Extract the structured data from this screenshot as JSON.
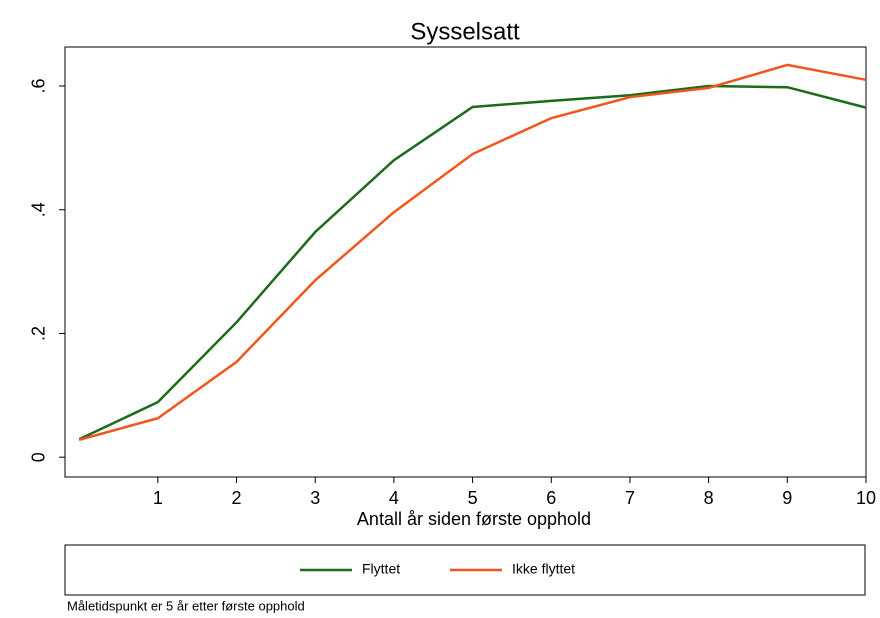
{
  "chart_data": {
    "type": "line",
    "title": "Sysselsatt",
    "x_label": "Antall år siden første opphold",
    "note": "Måletidspunkt er 5 år etter første opphold",
    "x": [
      0,
      1,
      2,
      3,
      4,
      5,
      6,
      7,
      8,
      9,
      10
    ],
    "series": [
      {
        "name": "Flyttet",
        "color": "#1a6b1a",
        "values": [
          0.029,
          0.089,
          0.218,
          0.364,
          0.48,
          0.566,
          0.576,
          0.585,
          0.6,
          0.598,
          0.565
        ]
      },
      {
        "name": "Ikke flyttet",
        "color": "#f0571e",
        "values": [
          0.028,
          0.063,
          0.154,
          0.286,
          0.396,
          0.49,
          0.548,
          0.582,
          0.597,
          0.634,
          0.61
        ]
      }
    ],
    "xlim": [
      -0.18,
      10
    ],
    "ylim": [
      -0.032,
      0.663
    ],
    "xticks": [
      1,
      2,
      3,
      4,
      5,
      6,
      7,
      8,
      9,
      10
    ],
    "yticks": [
      0,
      {
        "value": 0.2,
        "label": ".2"
      },
      {
        "value": 0.4,
        "label": ".4"
      },
      {
        "value": 0.6,
        "label": ".6"
      }
    ]
  }
}
